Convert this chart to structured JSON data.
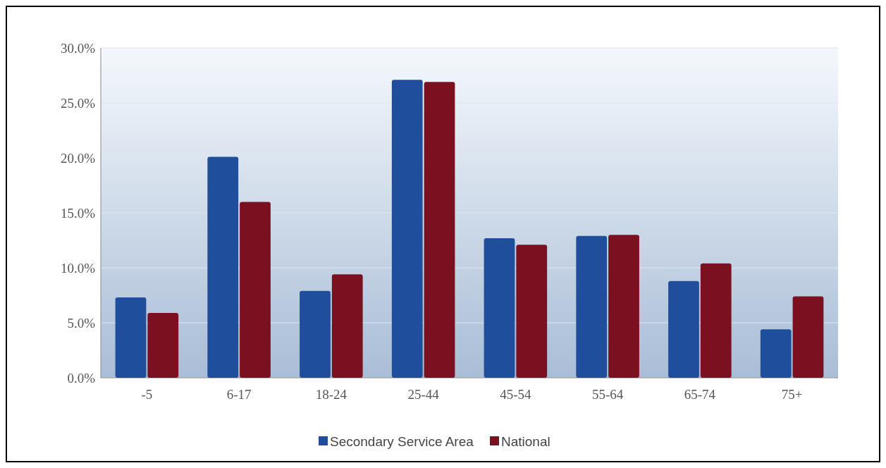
{
  "chart_data": {
    "type": "bar",
    "categories": [
      "-5",
      "6-17",
      "18-24",
      "25-44",
      "45-54",
      "55-64",
      "65-74",
      "75+"
    ],
    "series": [
      {
        "name": "Secondary Service Area",
        "color": "#1f4e9c",
        "values": [
          7.3,
          20.1,
          7.9,
          27.1,
          12.7,
          12.9,
          8.8,
          4.4
        ]
      },
      {
        "name": "National",
        "color": "#7b1020",
        "values": [
          5.9,
          16.0,
          9.4,
          26.9,
          12.1,
          13.0,
          10.4,
          7.4
        ]
      }
    ],
    "ylim": [
      0,
      30
    ],
    "yticks": [
      {
        "value": 0,
        "label": "0.0%"
      },
      {
        "value": 5,
        "label": "5.0%"
      },
      {
        "value": 10,
        "label": "10.0%"
      },
      {
        "value": 15,
        "label": "15.0%"
      },
      {
        "value": 20,
        "label": "20.0%"
      },
      {
        "value": 25,
        "label": "25.0%"
      },
      {
        "value": 30,
        "label": "30.0%"
      }
    ],
    "grid": "y",
    "legend": "bottom"
  }
}
